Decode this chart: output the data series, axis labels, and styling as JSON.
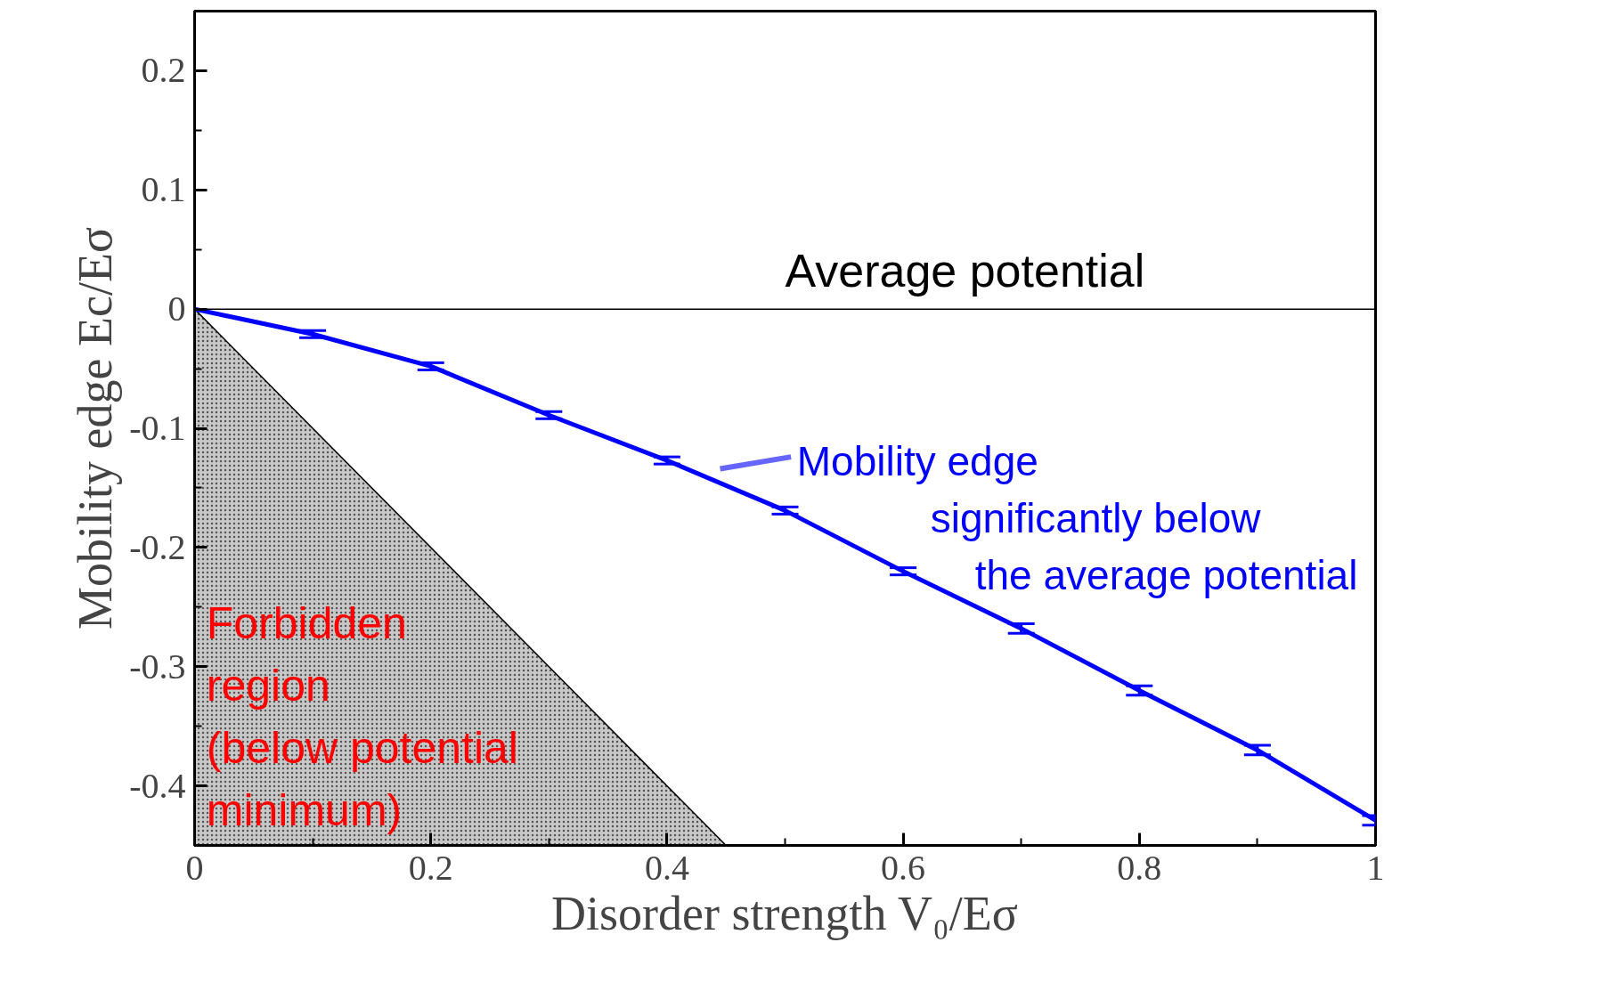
{
  "chart_data": {
    "type": "line",
    "xlabel": "Disorder strength V₀/Eσ",
    "ylabel": "Mobility edge Ec/Eσ",
    "x": [
      0,
      0.1,
      0.2,
      0.3,
      0.4,
      0.5,
      0.6,
      0.7,
      0.8,
      0.9,
      1.0
    ],
    "series": [
      {
        "type": "area",
        "color": "#c8c8c8",
        "x": [
          0,
          0.45
        ],
        "values": [
          0,
          -0.45
        ]
      },
      {
        "color": "#0000ff",
        "values": [
          0,
          -0.021,
          -0.048,
          -0.089,
          -0.127,
          -0.169,
          -0.22,
          -0.268,
          -0.32,
          -0.37,
          -0.429
        ],
        "errors": [
          null,
          0.003,
          0.003,
          0.003,
          0.003,
          0.003,
          0.003,
          0.004,
          0.004,
          0.004,
          0.004
        ]
      }
    ],
    "xlim": [
      0,
      1
    ],
    "ylim": [
      -0.45,
      0.25
    ],
    "xticks": [
      0,
      {
        "value": 0.1,
        "label": null
      },
      0.2,
      {
        "value": 0.3,
        "label": null
      },
      0.4,
      {
        "value": 0.5,
        "label": null
      },
      0.6,
      {
        "value": 0.7,
        "label": null
      },
      0.8,
      {
        "value": 0.9,
        "label": null
      },
      1
    ],
    "yticks": [
      {
        "value": -0.45,
        "label": null
      },
      -0.4,
      {
        "value": -0.35,
        "label": null
      },
      -0.3,
      {
        "value": -0.25,
        "label": null
      },
      -0.2,
      {
        "value": -0.15,
        "label": null
      },
      -0.1,
      {
        "value": -0.05,
        "label": null
      },
      0,
      {
        "value": 0.05,
        "label": null
      },
      0.1,
      {
        "value": 0.15,
        "label": null
      },
      0.2
    ],
    "ref_lines": [
      {
        "axis": "y",
        "value": 0,
        "label": "Average potential",
        "color": "#000000"
      }
    ],
    "annotations": [
      "Mobility edge\nsignificantly below\nthe average potential",
      "Forbidden\nregion\n(below potential\nminimum)"
    ],
    "grid": false
  }
}
